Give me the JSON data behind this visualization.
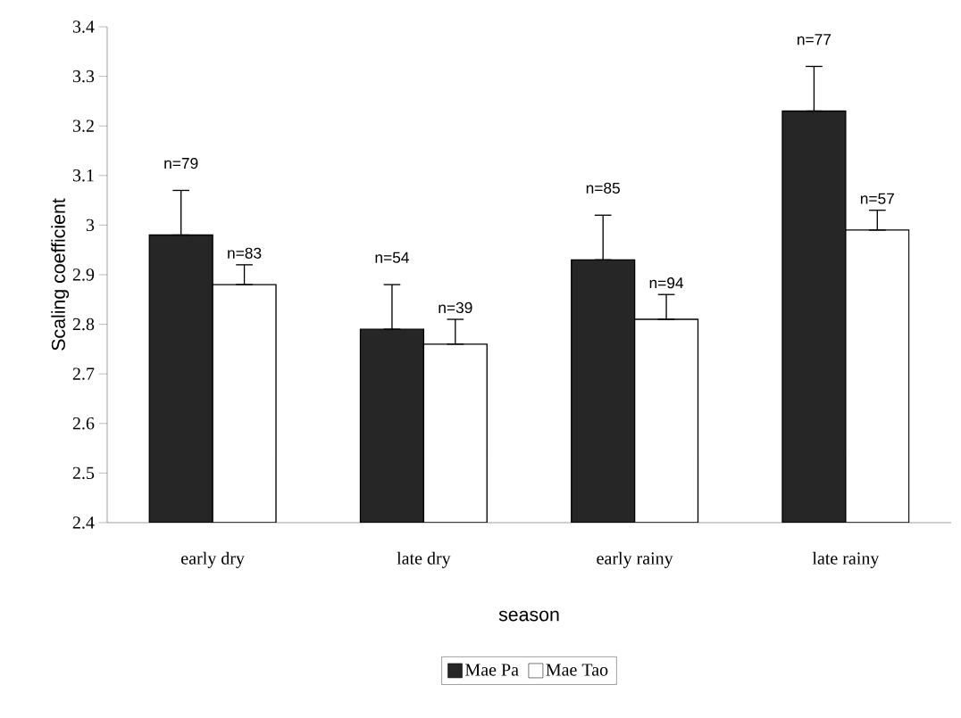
{
  "chart_data": {
    "type": "bar",
    "xlabel": "season",
    "ylabel": "Scaling coefficient",
    "categories": [
      "early dry",
      "late dry",
      "early rainy",
      "late rainy"
    ],
    "series": [
      {
        "name": "Mae Pa",
        "color": "#262626",
        "values": [
          2.98,
          2.79,
          2.93,
          3.23
        ],
        "errors": [
          [
            2.98,
            3.07
          ],
          [
            2.79,
            2.88
          ],
          [
            2.93,
            3.02
          ],
          [
            3.23,
            3.32
          ]
        ]
      },
      {
        "name": "Mae Tao",
        "color": "#ffffff",
        "values": [
          2.88,
          2.76,
          2.81,
          2.99
        ],
        "errors": [
          [
            2.88,
            2.92
          ],
          [
            2.76,
            2.81
          ],
          [
            2.81,
            2.86
          ],
          [
            2.99,
            3.03
          ]
        ]
      }
    ],
    "annotations": [
      "n=79",
      "n=54",
      "n=85",
      "n=77",
      "n=83",
      "n=39",
      "n=94",
      "n=57"
    ],
    "ylim": [
      2.4,
      3.4
    ],
    "yticks": [
      2.4,
      2.5,
      2.6,
      2.7,
      2.8,
      2.9,
      3,
      3.1,
      3.2,
      3.3,
      3.4
    ],
    "grid": false,
    "legend": "bottom"
  }
}
